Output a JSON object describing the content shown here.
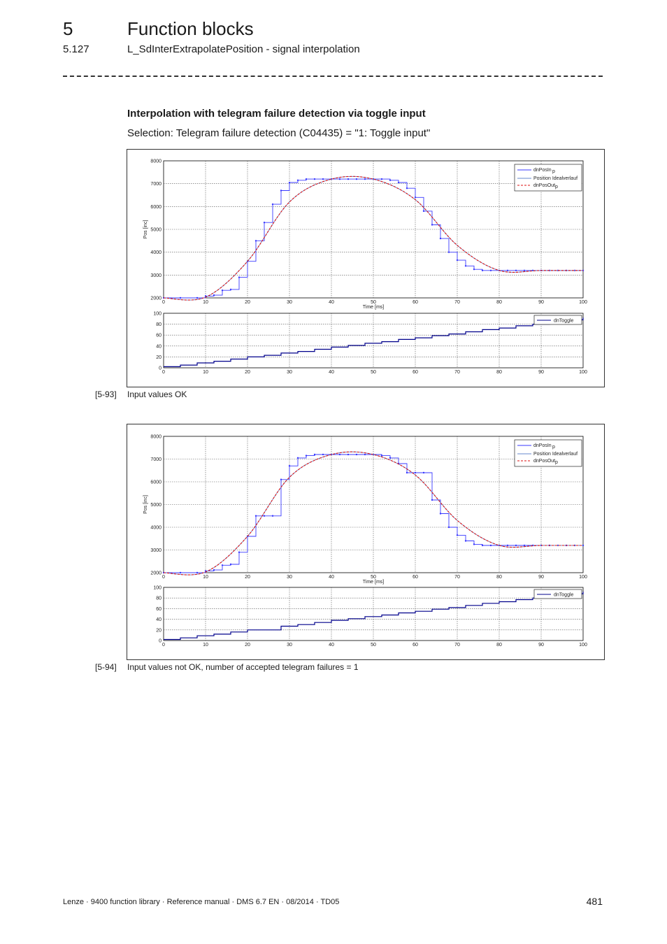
{
  "header": {
    "chapter_number": "5",
    "chapter_title": "Function blocks",
    "section_number": "5.127",
    "section_title": "L_SdInterExtrapolatePosition - signal interpolation"
  },
  "heading": "Interpolation with telegram failure detection via toggle input",
  "selection_text": "Selection: Telegram failure detection (C04435) = \"1: Toggle input\"",
  "figures": [
    {
      "number": "[5-93]",
      "caption": "Input values OK"
    },
    {
      "number": "[5-94]",
      "caption": "Input values not OK, number of accepted telegram failures = 1"
    }
  ],
  "colors": {
    "posin": "#3a3aff",
    "ideal": "#6688cc",
    "posout": "#dd1111",
    "toggle": "#00008b"
  },
  "chart_data": [
    {
      "type": "line",
      "title": "",
      "xlabel": "Time [ms]",
      "ylabel": "Pos [inc]",
      "xlim": [
        0,
        100
      ],
      "ylim": [
        2000,
        8000
      ],
      "x_ticks": [
        "0",
        "10",
        "20",
        "30",
        "40",
        "50",
        "60",
        "70",
        "80",
        "90",
        "100"
      ],
      "y_ticks": [
        "2000",
        "3000",
        "4000",
        "5000",
        "6000",
        "7000",
        "8000"
      ],
      "grid": true,
      "legend_position": "top-right",
      "legend": {
        "posin": "dnPosIn",
        "posin_sub": "p",
        "ideal": "Position Idealverlauf",
        "posout": "dnPosOut",
        "posout_sub": "p"
      },
      "series": [
        {
          "key": "posin",
          "x": [
            0,
            4,
            8,
            10,
            12,
            14,
            16,
            18,
            20,
            22,
            24,
            26,
            28,
            30,
            32,
            34,
            36,
            38,
            40,
            42,
            44,
            46,
            48,
            50,
            52,
            54,
            56,
            58,
            60,
            62,
            64,
            66,
            68,
            70,
            72,
            74,
            76,
            78,
            80,
            82,
            84,
            86,
            88,
            90,
            92,
            94,
            96,
            98,
            100
          ],
          "y": [
            2000,
            2000,
            2000,
            2080,
            2120,
            2330,
            2370,
            2900,
            3600,
            4500,
            5300,
            6100,
            6700,
            7050,
            7150,
            7200,
            7200,
            7200,
            7200,
            7200,
            7200,
            7200,
            7200,
            7200,
            7200,
            7150,
            7050,
            6800,
            6400,
            5800,
            5200,
            4600,
            4000,
            3650,
            3400,
            3250,
            3200,
            3200,
            3200,
            3200,
            3200,
            3200,
            3200,
            3200,
            3200,
            3200,
            3200,
            3200,
            3200
          ]
        },
        {
          "key": "ideal",
          "x": [
            0,
            10,
            20,
            30,
            40,
            50,
            60,
            70,
            80,
            90,
            100
          ],
          "y": [
            2000,
            2030,
            3600,
            6200,
            7200,
            7200,
            6300,
            4300,
            3200,
            3200,
            3200
          ]
        },
        {
          "key": "posout",
          "x": [
            0,
            10,
            20,
            30,
            40,
            50,
            60,
            70,
            80,
            90,
            100
          ],
          "y": [
            2000,
            2030,
            3600,
            6200,
            7200,
            7200,
            6300,
            4300,
            3200,
            3200,
            3200
          ]
        }
      ]
    },
    {
      "type": "line",
      "title": "",
      "xlabel": "",
      "ylabel": "",
      "xlim": [
        0,
        100
      ],
      "ylim": [
        0,
        100
      ],
      "x_ticks": [
        "0",
        "10",
        "20",
        "30",
        "40",
        "50",
        "60",
        "70",
        "80",
        "90",
        "100"
      ],
      "y_ticks": [
        "0",
        "20",
        "40",
        "60",
        "80",
        "100"
      ],
      "grid": true,
      "legend_position": "top-right",
      "legend": {
        "toggle": "dnToggle"
      },
      "series": [
        {
          "key": "toggle",
          "name": "dnToggle",
          "step": true,
          "x": [
            0,
            4,
            8,
            12,
            16,
            20,
            24,
            28,
            32,
            36,
            40,
            44,
            48,
            52,
            56,
            60,
            64,
            68,
            72,
            76,
            80,
            84,
            88,
            92,
            96,
            100
          ],
          "y": [
            2,
            5,
            9,
            12,
            16,
            20,
            23,
            27,
            30,
            34,
            38,
            41,
            45,
            48,
            52,
            55,
            59,
            62,
            66,
            70,
            73,
            77,
            80,
            84,
            88,
            92
          ]
        }
      ]
    },
    {
      "type": "line",
      "title": "",
      "xlabel": "Time [ms]",
      "ylabel": "Pos [inc]",
      "xlim": [
        0,
        100
      ],
      "ylim": [
        2000,
        8000
      ],
      "x_ticks": [
        "0",
        "10",
        "20",
        "30",
        "40",
        "50",
        "60",
        "70",
        "80",
        "90",
        "100"
      ],
      "y_ticks": [
        "2000",
        "3000",
        "4000",
        "5000",
        "6000",
        "7000",
        "8000"
      ],
      "grid": true,
      "legend_position": "top-right",
      "legend": {
        "posin": "dnPosIn",
        "posin_sub": "p",
        "ideal": "Position Idealverlauf",
        "posout": "dnPosOut",
        "posout_sub": "p"
      },
      "series": [
        {
          "key": "posin",
          "x": [
            0,
            4,
            8,
            10,
            12,
            14,
            16,
            18,
            20,
            22,
            24,
            26,
            28,
            30,
            32,
            34,
            36,
            38,
            40,
            42,
            44,
            46,
            48,
            50,
            52,
            54,
            56,
            58,
            60,
            62,
            64,
            66,
            68,
            70,
            72,
            74,
            76,
            78,
            80,
            82,
            84,
            86,
            88,
            90,
            92,
            94,
            96,
            98,
            100
          ],
          "y": [
            2000,
            2000,
            2000,
            2080,
            2120,
            2330,
            2370,
            2900,
            3600,
            4500,
            4500,
            4500,
            6100,
            6700,
            7050,
            7150,
            7200,
            7200,
            7200,
            7200,
            7200,
            7200,
            7200,
            7200,
            7150,
            7050,
            6800,
            6400,
            6400,
            6400,
            5200,
            4600,
            4000,
            3650,
            3400,
            3250,
            3200,
            3200,
            3200,
            3200,
            3200,
            3200,
            3200,
            3200,
            3200,
            3200,
            3200,
            3200,
            3200
          ]
        },
        {
          "key": "ideal",
          "x": [
            0,
            10,
            20,
            30,
            40,
            50,
            60,
            70,
            80,
            90,
            100
          ],
          "y": [
            2000,
            2030,
            3600,
            6200,
            7200,
            7200,
            6300,
            4300,
            3200,
            3200,
            3200
          ]
        },
        {
          "key": "posout",
          "x": [
            0,
            10,
            20,
            30,
            40,
            50,
            60,
            70,
            80,
            90,
            100
          ],
          "y": [
            2000,
            2030,
            3600,
            6200,
            7200,
            7200,
            6300,
            4300,
            3200,
            3200,
            3200
          ]
        }
      ]
    },
    {
      "type": "line",
      "title": "",
      "xlabel": "",
      "ylabel": "",
      "xlim": [
        0,
        100
      ],
      "ylim": [
        0,
        100
      ],
      "x_ticks": [
        "0",
        "10",
        "20",
        "30",
        "40",
        "50",
        "60",
        "70",
        "80",
        "90",
        "100"
      ],
      "y_ticks": [
        "0",
        "20",
        "40",
        "60",
        "80",
        "100"
      ],
      "grid": true,
      "legend_position": "top-right",
      "legend": {
        "toggle": "dnToggle"
      },
      "series": [
        {
          "key": "toggle",
          "name": "dnToggle",
          "step": true,
          "x": [
            0,
            4,
            8,
            12,
            16,
            20,
            22,
            28,
            32,
            36,
            40,
            44,
            48,
            52,
            56,
            60,
            64,
            68,
            72,
            76,
            80,
            84,
            88,
            92,
            96,
            100
          ],
          "y": [
            2,
            5,
            9,
            12,
            16,
            20,
            20,
            27,
            30,
            34,
            38,
            41,
            45,
            48,
            52,
            55,
            59,
            62,
            66,
            70,
            73,
            77,
            80,
            84,
            88,
            92
          ]
        }
      ]
    }
  ],
  "footer": {
    "text": "Lenze · 9400 function library · Reference manual · DMS 6.7 EN · 08/2014 · TD05",
    "page_number": "481"
  }
}
